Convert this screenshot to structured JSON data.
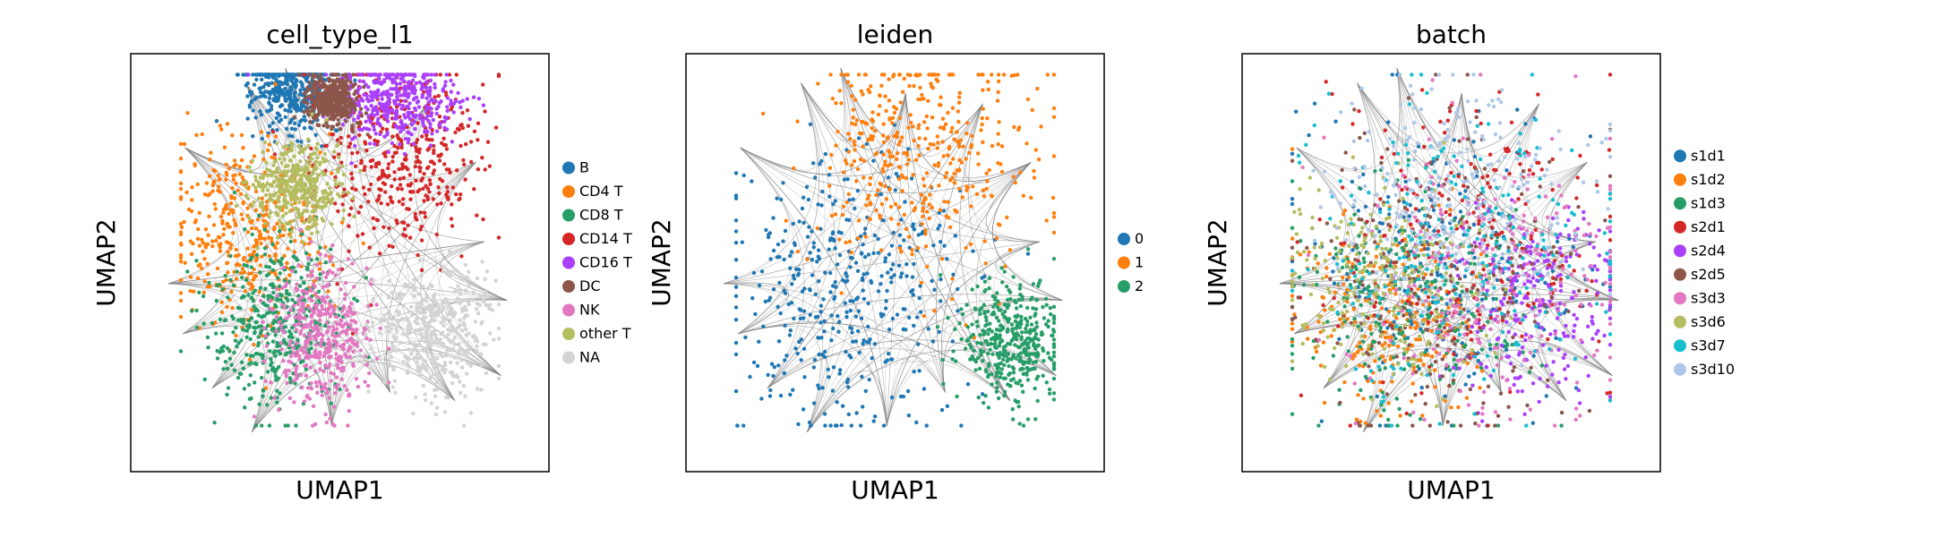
{
  "chart_data": [
    {
      "type": "scatter",
      "title": "cell_type_l1",
      "xlabel": "UMAP1",
      "ylabel": "UMAP2",
      "xticks": [],
      "yticks": [],
      "grid": false,
      "legend_position": "right",
      "background_edges": true,
      "series": [
        {
          "name": "B",
          "color": "#1f77b4",
          "region": [
            -2.3,
            8.5
          ],
          "spread": [
            1.0,
            1.3
          ]
        },
        {
          "name": "CD4 T",
          "color": "#ff7f0e",
          "region": [
            -4.4,
            1.5
          ],
          "spread": [
            1.8,
            2.2
          ]
        },
        {
          "name": "CD8 T",
          "color": "#279e68",
          "region": [
            -3.2,
            -3.0
          ],
          "spread": [
            1.6,
            2.0
          ]
        },
        {
          "name": "CD14 T",
          "color": "#d62728",
          "region": [
            3.0,
            5.0
          ],
          "spread": [
            2.0,
            2.2
          ]
        },
        {
          "name": "CD16 T",
          "color": "#aa40fc",
          "region": [
            2.6,
            7.8
          ],
          "spread": [
            1.6,
            1.0
          ]
        },
        {
          "name": "DC",
          "color": "#8c564b",
          "region": [
            -0.4,
            7.8
          ],
          "spread": [
            0.6,
            0.6
          ]
        },
        {
          "name": "NK",
          "color": "#e377c2",
          "region": [
            -0.9,
            -3.6
          ],
          "spread": [
            1.2,
            1.8
          ]
        },
        {
          "name": "other T",
          "color": "#b5bd61",
          "region": [
            -2.0,
            3.5
          ],
          "spread": [
            1.0,
            1.0
          ]
        },
        {
          "name": "NA",
          "color": "#d3d3d3",
          "region": [
            4.5,
            -3.2
          ],
          "spread": [
            1.4,
            1.5
          ]
        }
      ]
    },
    {
      "type": "scatter",
      "title": "leiden",
      "xlabel": "UMAP1",
      "ylabel": "UMAP2",
      "xticks": [],
      "yticks": [],
      "grid": false,
      "legend_position": "right",
      "background_edges": true,
      "series": [
        {
          "name": "0",
          "color": "#1f77b4",
          "region": [
            -2.6,
            -1.2
          ],
          "spread": [
            2.8,
            3.3
          ]
        },
        {
          "name": "1",
          "color": "#ff7f0e",
          "region": [
            1.2,
            5.4
          ],
          "spread": [
            2.8,
            2.8
          ]
        },
        {
          "name": "2",
          "color": "#279e68",
          "region": [
            5.6,
            -3.8
          ],
          "spread": [
            1.3,
            1.4
          ]
        }
      ]
    },
    {
      "type": "scatter",
      "title": "batch",
      "xlabel": "UMAP1",
      "ylabel": "UMAP2",
      "xticks": [],
      "yticks": [],
      "grid": false,
      "legend_position": "right",
      "background_edges": true,
      "series": [
        {
          "name": "s1d1",
          "color": "#1f77b4",
          "region": [
            0.0,
            0.0
          ],
          "spread": [
            3.5,
            3.5
          ]
        },
        {
          "name": "s1d2",
          "color": "#ff7f0e",
          "region": [
            -3.0,
            -3.0
          ],
          "spread": [
            2.2,
            2.2
          ]
        },
        {
          "name": "s1d3",
          "color": "#279e68",
          "region": [
            -2.0,
            -2.0
          ],
          "spread": [
            2.8,
            2.8
          ]
        },
        {
          "name": "s2d1",
          "color": "#d62728",
          "region": [
            1.0,
            1.0
          ],
          "spread": [
            3.5,
            3.5
          ]
        },
        {
          "name": "s2d4",
          "color": "#aa40fc",
          "region": [
            4.0,
            -2.0
          ],
          "spread": [
            2.0,
            2.2
          ]
        },
        {
          "name": "s2d5",
          "color": "#8c564b",
          "region": [
            -1.0,
            -1.0
          ],
          "spread": [
            3.5,
            3.5
          ]
        },
        {
          "name": "s3d3",
          "color": "#e377c2",
          "region": [
            2.0,
            -1.0
          ],
          "spread": [
            3.5,
            3.5
          ]
        },
        {
          "name": "s3d6",
          "color": "#b5bd61",
          "region": [
            -3.5,
            -1.0
          ],
          "spread": [
            2.5,
            2.5
          ]
        },
        {
          "name": "s3d7",
          "color": "#17becf",
          "region": [
            0.5,
            0.5
          ],
          "spread": [
            3.5,
            3.5
          ]
        },
        {
          "name": "s3d10",
          "color": "#aec7e8",
          "region": [
            0.0,
            3.5
          ],
          "spread": [
            3.2,
            3.0
          ]
        }
      ]
    }
  ]
}
